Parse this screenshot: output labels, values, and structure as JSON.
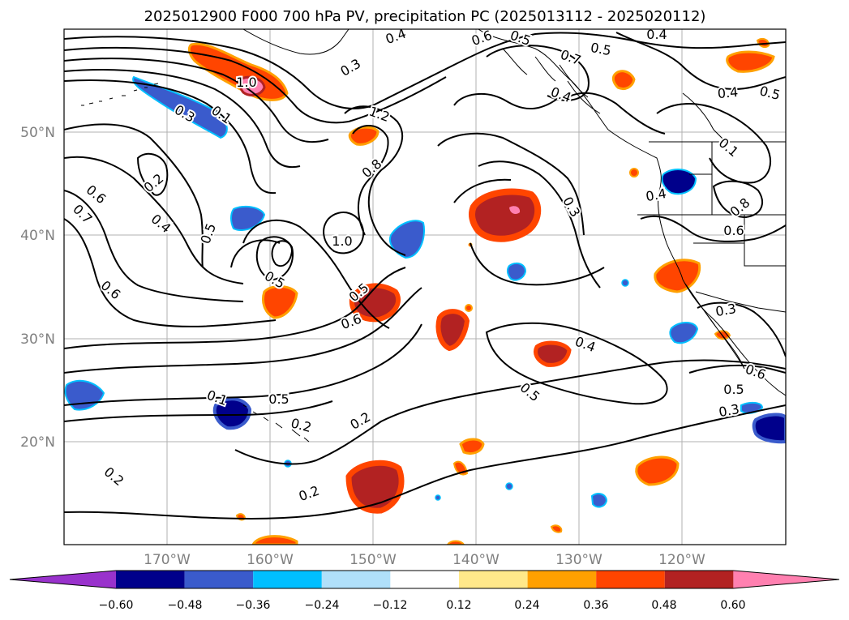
{
  "title": "2025012900 F000 700 hPa PV, precipitation PC (2025013112 - 2025020112)",
  "map": {
    "region": "North Pacific / western North America",
    "projection": "PlateCarree",
    "lon_range": [
      -180,
      -110
    ],
    "lat_range": [
      10,
      60
    ],
    "gridlines": true,
    "lon_ticks": [
      "170°W",
      "160°W",
      "150°W",
      "140°W",
      "130°W",
      "120°W"
    ],
    "lat_ticks": [
      "50°N",
      "40°N",
      "30°N",
      "20°N"
    ],
    "coastlines": true,
    "borders": true
  },
  "contour_labels": [
    "0.4",
    "0.3",
    "0.4",
    "0.7",
    "0.5",
    "0.5",
    "0.4",
    "0.6",
    "0.5",
    "1.0",
    "0.3",
    "0.1",
    "1.2",
    "0.8",
    "0.2",
    "0.6",
    "0.7",
    "0.4",
    "0.5",
    "0.4",
    "0.3",
    "0.4",
    "0.1",
    "0.8",
    "0.6",
    "1.0",
    "0.5",
    "0.5",
    "0.6",
    "0.6",
    "0.3",
    "0.4",
    "0.5",
    "0.1",
    "0.5",
    "0.2",
    "0.2",
    "0.3",
    "0.6",
    "0.5",
    "0.2",
    "0.2"
  ],
  "colorbar": {
    "extend": "both",
    "tick_labels": [
      "−0.60",
      "−0.48",
      "−0.36",
      "−0.24",
      "−0.12",
      "0.12",
      "0.24",
      "0.36",
      "0.48",
      "0.60"
    ],
    "bins": [
      {
        "color": "#9932cc"
      },
      {
        "color": "#00008b"
      },
      {
        "color": "#3a5bcc"
      },
      {
        "color": "#00bfff"
      },
      {
        "color": "#b0e0fa"
      },
      {
        "color": "#ffffff"
      },
      {
        "color": "#ffe88a"
      },
      {
        "color": "#ffa000"
      },
      {
        "color": "#ff4500"
      },
      {
        "color": "#b22222"
      },
      {
        "color": "#ff80b0"
      }
    ]
  },
  "colors": {
    "neg_strong": "#00008b",
    "neg_mid": "#3a5bcc",
    "neg_light": "#00bfff",
    "pos_light": "#ffe88a",
    "pos_mid": "#ffa000",
    "pos_strong": "#ff4500",
    "pos_max": "#b22222",
    "pos_extreme": "#ff80b0"
  },
  "precip_blobs": [
    {
      "sign": "neg",
      "level": 2
    },
    {
      "sign": "neg",
      "level": 2
    },
    {
      "sign": "neg",
      "level": 2
    },
    {
      "sign": "neg",
      "level": 3
    },
    {
      "sign": "neg",
      "level": 2
    },
    {
      "sign": "neg",
      "level": 3
    },
    {
      "sign": "neg",
      "level": 2
    },
    {
      "sign": "neg",
      "level": 2
    },
    {
      "sign": "neg",
      "level": 3
    },
    {
      "sign": "neg",
      "level": 2
    },
    {
      "sign": "neg",
      "level": 1
    },
    {
      "sign": "neg",
      "level": 1
    },
    {
      "sign": "neg",
      "level": 1
    },
    {
      "sign": "neg",
      "level": 1
    },
    {
      "sign": "neg",
      "level": 1
    },
    {
      "sign": "pos",
      "level": 4
    },
    {
      "sign": "pos",
      "level": 4
    },
    {
      "sign": "pos",
      "level": 3
    },
    {
      "sign": "pos",
      "level": 3
    },
    {
      "sign": "pos",
      "level": 3
    },
    {
      "sign": "pos",
      "level": 3
    },
    {
      "sign": "pos",
      "level": 3
    },
    {
      "sign": "pos",
      "level": 4
    },
    {
      "sign": "pos",
      "level": 3
    },
    {
      "sign": "pos",
      "level": 3
    },
    {
      "sign": "pos",
      "level": 3
    },
    {
      "sign": "pos",
      "level": 3
    },
    {
      "sign": "pos",
      "level": 3
    },
    {
      "sign": "pos",
      "level": 3
    },
    {
      "sign": "pos",
      "level": 3
    },
    {
      "sign": "pos",
      "level": 2
    },
    {
      "sign": "pos",
      "level": 3
    },
    {
      "sign": "pos",
      "level": 2
    }
  ]
}
